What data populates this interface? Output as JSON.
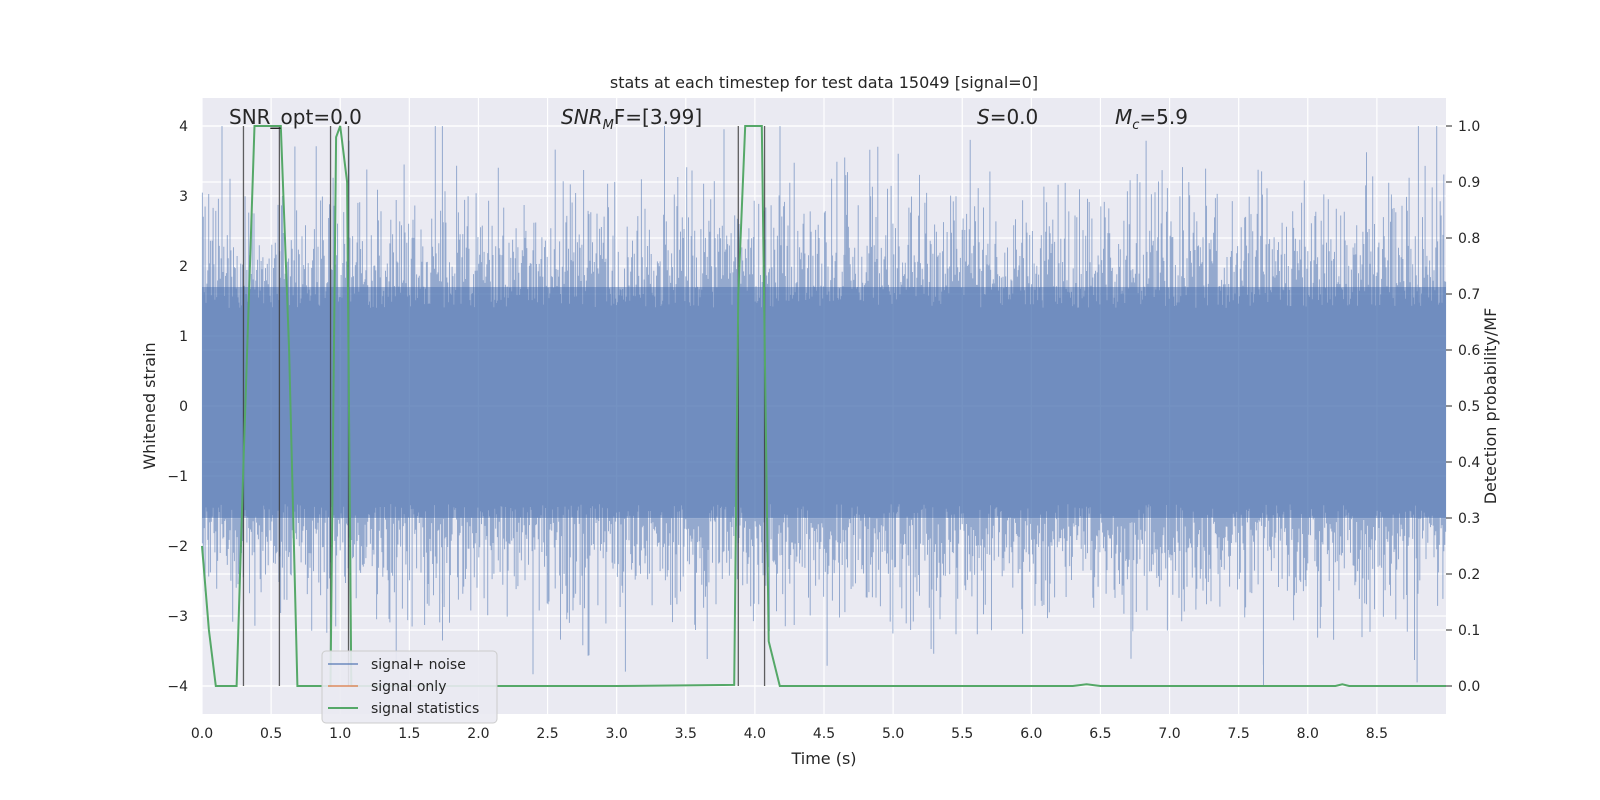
{
  "chart_data": {
    "type": "line",
    "title": "stats at each timestep for test data 15049 [signal=0]",
    "xlabel": "Time (s)",
    "ylabel": "Whitened strain",
    "ylabel_right": "Detection probability/MF",
    "xlim": [
      0,
      9.0
    ],
    "ylim": [
      -4.4,
      4.4
    ],
    "ylim_right": [
      -0.05,
      1.05
    ],
    "x_ticks": [
      "0.0",
      "0.5",
      "1.0",
      "1.5",
      "2.0",
      "2.5",
      "3.0",
      "3.5",
      "4.0",
      "4.5",
      "5.0",
      "5.5",
      "6.0",
      "6.5",
      "7.0",
      "7.5",
      "8.0",
      "8.5"
    ],
    "y_ticks": [
      "4",
      "3",
      "2",
      "1",
      "0",
      "−1",
      "−2",
      "−3",
      "−4"
    ],
    "y_right_ticks": [
      "1.0",
      "0.9",
      "0.8",
      "0.7",
      "0.6",
      "0.5",
      "0.4",
      "0.3",
      "0.2",
      "0.1",
      "0.0"
    ],
    "grid": true,
    "annotations": {
      "snr_opt": "SNR_opt=0.0",
      "snr_mf_base": "SNR",
      "snr_mf_sub": "M",
      "snr_mf_rest": "F=[3.99]",
      "s_base": "S",
      "s_rest": "=0.0",
      "mc_base": "M",
      "mc_sub": "c",
      "mc_rest": "=5.9"
    },
    "series": [
      {
        "name": "signal+ noise",
        "color": "#4c72b0",
        "kind": "noise",
        "typical_envelope": [
          -1.6,
          1.7
        ],
        "peak_max": 4.0,
        "peak_min": -4.0
      },
      {
        "name": "signal only",
        "color": "#dd8452",
        "kind": "flat",
        "value": 0.0
      },
      {
        "name": "signal statistics",
        "color": "#55a868",
        "kind": "probability",
        "x": [
          0.0,
          0.05,
          0.1,
          0.25,
          0.3,
          0.38,
          0.5,
          0.57,
          0.63,
          0.69,
          0.75,
          0.9,
          0.93,
          0.97,
          1.0,
          1.05,
          1.08,
          1.2,
          1.5,
          2.0,
          3.0,
          3.85,
          3.88,
          3.93,
          4.05,
          4.1,
          4.18,
          4.3,
          5.0,
          6.3,
          6.4,
          6.5,
          7.0,
          8.2,
          8.25,
          8.3,
          9.0
        ],
        "y": [
          0.25,
          0.1,
          0.0,
          0.0,
          0.4,
          1.0,
          1.0,
          1.0,
          0.6,
          0.0,
          0.0,
          0.0,
          0.0,
          0.98,
          1.0,
          0.9,
          0.0,
          0.0,
          0.0,
          0.0,
          0.0,
          0.002,
          0.7,
          1.0,
          1.0,
          0.08,
          0.0,
          0.0,
          0.0,
          0.0,
          0.003,
          0.0,
          0.0,
          0.0,
          0.003,
          0.0,
          0.0
        ]
      }
    ],
    "vertical_markers": [
      0.3,
      0.56,
      0.93,
      1.06,
      3.88,
      4.07
    ],
    "legend_position": "lower-left"
  }
}
